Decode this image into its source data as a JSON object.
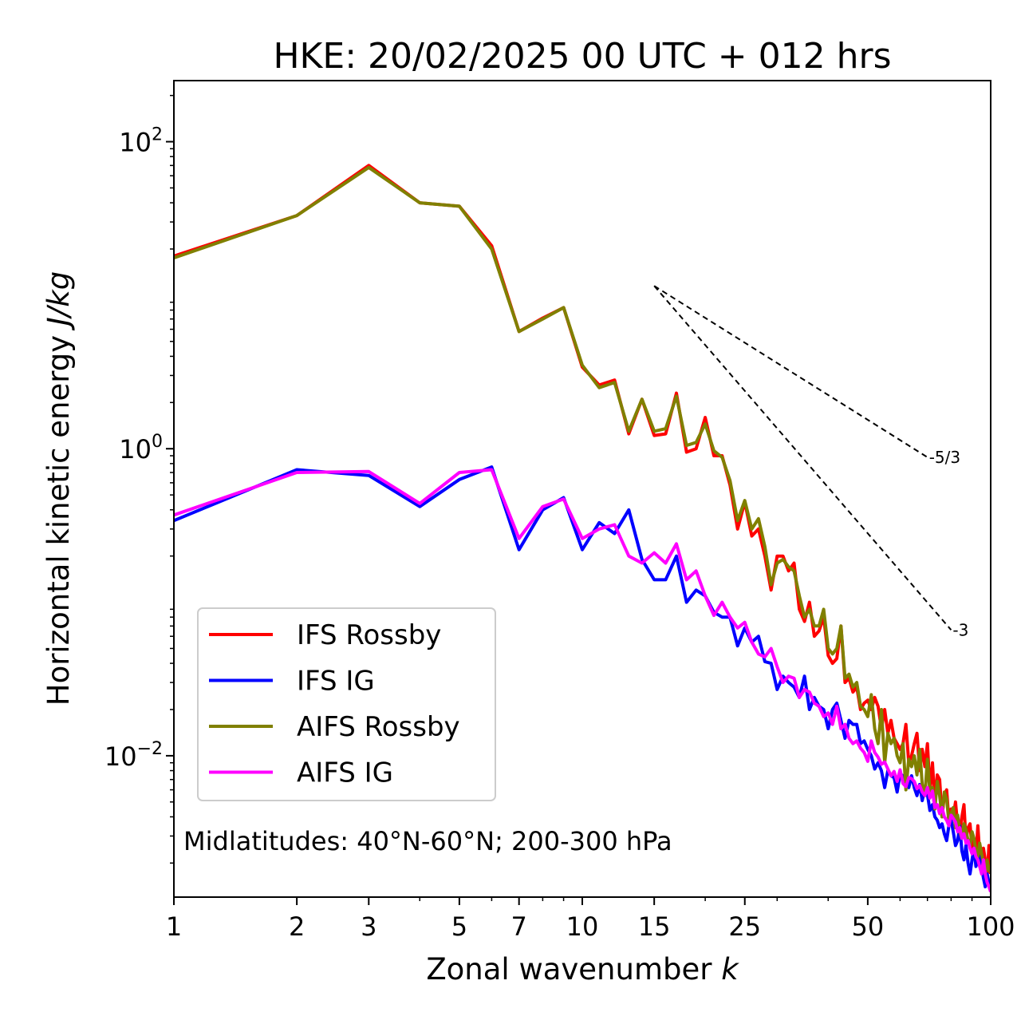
{
  "chart_data": {
    "type": "line",
    "title": "HKE: 20/02/2025 00 UTC + 012 hrs",
    "xlabel": "Zonal wavenumber",
    "xlabel_var": "k",
    "ylabel": "Horizontal kinetic energy",
    "ylabel_unit": "J/kg",
    "xscale": "log",
    "yscale": "log",
    "xlim": [
      1,
      100
    ],
    "ylim": [
      0.0012,
      250
    ],
    "x_ticks": [
      1,
      2,
      3,
      5,
      7,
      10,
      15,
      25,
      50,
      100
    ],
    "x_tick_labels": [
      "1",
      "2",
      "3",
      "5",
      "7",
      "10",
      "15",
      "25",
      "50",
      "100"
    ],
    "y_ticks": [
      0.01,
      1,
      100
    ],
    "y_tick_labels": [
      {
        "base": "10",
        "exp": "−2"
      },
      {
        "base": "10",
        "exp": "0"
      },
      {
        "base": "10",
        "exp": "2"
      }
    ],
    "legend_position": "lower-left",
    "annotation": "Midlatitudes: 40°N-60°N; 200-300 hPa",
    "reference_lines": [
      {
        "label": "-5/3",
        "x": [
          15,
          70
        ],
        "y": [
          11.5,
          0.88
        ]
      },
      {
        "label": "-3",
        "x": [
          15,
          80
        ],
        "y": [
          11.5,
          0.066
        ]
      }
    ],
    "x": [
      1,
      2,
      3,
      4,
      5,
      6,
      7,
      8,
      9,
      10,
      11,
      12,
      13,
      14,
      15,
      16,
      17,
      18,
      19,
      20,
      21,
      22,
      23,
      24,
      25,
      26,
      27,
      28,
      29,
      30,
      31,
      32,
      33,
      34,
      35,
      36,
      37,
      38,
      39,
      40,
      41,
      42,
      43,
      44,
      45,
      46,
      47,
      48,
      49,
      50,
      51,
      52,
      53,
      54,
      55,
      56,
      57,
      58,
      59,
      60,
      61,
      62,
      63,
      64,
      65,
      66,
      67,
      68,
      69,
      70,
      71,
      72,
      73,
      74,
      75,
      76,
      77,
      78,
      79,
      80,
      81,
      82,
      83,
      84,
      85,
      86,
      87,
      88,
      89,
      90,
      91,
      92,
      93,
      94,
      95,
      96,
      97,
      98,
      99,
      100
    ],
    "series": [
      {
        "name": "IFS Rossby",
        "color": "#ff0000",
        "values": [
          18,
          33,
          70,
          40,
          38,
          21,
          5.8,
          7.1,
          8.3,
          3.4,
          2.6,
          2.8,
          1.25,
          2.1,
          1.22,
          1.25,
          2.3,
          0.95,
          1.0,
          1.6,
          0.9,
          0.9,
          0.58,
          0.3,
          0.45,
          0.27,
          0.3,
          0.2,
          0.12,
          0.2,
          0.2,
          0.16,
          0.18,
          0.09,
          0.075,
          0.1,
          0.06,
          0.065,
          0.08,
          0.045,
          0.04,
          0.043,
          0.07,
          0.03,
          0.032,
          0.026,
          0.028,
          0.02,
          0.022,
          0.023,
          0.02,
          0.024,
          0.021,
          0.015,
          0.02,
          0.014,
          0.017,
          0.013,
          0.012,
          0.011,
          0.012,
          0.016,
          0.009,
          0.01,
          0.012,
          0.014,
          0.008,
          0.011,
          0.0085,
          0.012,
          0.006,
          0.009,
          0.005,
          0.0075,
          0.007,
          0.004,
          0.0055,
          0.006,
          0.0038,
          0.0045,
          0.004,
          0.005,
          0.0035,
          0.0032,
          0.004,
          0.0048,
          0.0028,
          0.0034,
          0.0036,
          0.0025,
          0.0028,
          0.0022,
          0.0035,
          0.0023,
          0.0018,
          0.0025,
          0.0021,
          0.0016,
          0.0026,
          0.0017
        ]
      },
      {
        "name": "IFS IG",
        "color": "#0000ff",
        "values": [
          0.34,
          0.73,
          0.67,
          0.42,
          0.63,
          0.76,
          0.22,
          0.4,
          0.48,
          0.22,
          0.33,
          0.28,
          0.4,
          0.19,
          0.14,
          0.14,
          0.2,
          0.1,
          0.12,
          0.11,
          0.086,
          0.08,
          0.08,
          0.052,
          0.068,
          0.055,
          0.06,
          0.041,
          0.04,
          0.027,
          0.033,
          0.03,
          0.028,
          0.024,
          0.033,
          0.02,
          0.024,
          0.021,
          0.02,
          0.015,
          0.02,
          0.022,
          0.017,
          0.013,
          0.017,
          0.016,
          0.016,
          0.012,
          0.0125,
          0.011,
          0.01,
          0.0082,
          0.009,
          0.008,
          0.0062,
          0.008,
          0.0074,
          0.0072,
          0.0058,
          0.0076,
          0.0074,
          0.0068,
          0.0062,
          0.0074,
          0.0062,
          0.0055,
          0.0065,
          0.0051,
          0.0062,
          0.0056,
          0.0044,
          0.0048,
          0.004,
          0.0038,
          0.0034,
          0.0036,
          0.0031,
          0.0028,
          0.0035,
          0.0038,
          0.0032,
          0.0026,
          0.0028,
          0.0035,
          0.0024,
          0.0021,
          0.0026,
          0.002,
          0.0017,
          0.0021,
          0.0025,
          0.0019,
          0.0021,
          0.0022,
          0.0019,
          0.0016,
          0.0014,
          0.0017,
          0.0015,
          0.0013
        ]
      },
      {
        "name": "AIFS Rossby",
        "color": "#808000",
        "values": [
          17.5,
          33,
          68,
          40,
          38,
          20,
          5.8,
          7.0,
          8.3,
          3.5,
          2.5,
          2.7,
          1.3,
          2.1,
          1.3,
          1.35,
          2.2,
          1.05,
          1.1,
          1.45,
          0.97,
          0.88,
          0.62,
          0.34,
          0.46,
          0.3,
          0.35,
          0.23,
          0.13,
          0.18,
          0.19,
          0.17,
          0.16,
          0.11,
          0.08,
          0.09,
          0.07,
          0.07,
          0.09,
          0.05,
          0.046,
          0.05,
          0.07,
          0.032,
          0.034,
          0.028,
          0.03,
          0.021,
          0.02,
          0.018,
          0.025,
          0.015,
          0.012,
          0.02,
          0.009,
          0.014,
          0.012,
          0.013,
          0.01,
          0.009,
          0.012,
          0.006,
          0.0095,
          0.0085,
          0.01,
          0.0075,
          0.011,
          0.0065,
          0.0055,
          0.0095,
          0.0058,
          0.0062,
          0.0045,
          0.0068,
          0.0055,
          0.004,
          0.0058,
          0.0052,
          0.0037,
          0.0042,
          0.0046,
          0.0034,
          0.0041,
          0.0032,
          0.0029,
          0.0036,
          0.0033,
          0.0028,
          0.0026,
          0.0032,
          0.0029,
          0.0024,
          0.0022,
          0.0027,
          0.0023,
          0.002,
          0.0017,
          0.0021,
          0.0018,
          0.00175
        ]
      },
      {
        "name": "AIFS IG",
        "color": "#ff00ff",
        "values": [
          0.37,
          0.7,
          0.71,
          0.44,
          0.7,
          0.73,
          0.26,
          0.42,
          0.47,
          0.26,
          0.3,
          0.32,
          0.2,
          0.18,
          0.21,
          0.18,
          0.24,
          0.14,
          0.16,
          0.11,
          0.082,
          0.1,
          0.08,
          0.068,
          0.074,
          0.055,
          0.046,
          0.044,
          0.05,
          0.038,
          0.03,
          0.033,
          0.032,
          0.024,
          0.027,
          0.026,
          0.022,
          0.021,
          0.018,
          0.019,
          0.016,
          0.021,
          0.015,
          0.016,
          0.013,
          0.012,
          0.0125,
          0.0112,
          0.0105,
          0.0092,
          0.0125,
          0.0105,
          0.0098,
          0.0088,
          0.0091,
          0.0082,
          0.0074,
          0.0079,
          0.0068,
          0.0081,
          0.0066,
          0.0063,
          0.0072,
          0.0071,
          0.0068,
          0.0061,
          0.0064,
          0.0058,
          0.0055,
          0.0062,
          0.0053,
          0.0059,
          0.0046,
          0.0048,
          0.0042,
          0.0046,
          0.004,
          0.0038,
          0.0035,
          0.0041,
          0.0039,
          0.0037,
          0.0032,
          0.0034,
          0.0029,
          0.0031,
          0.0027,
          0.0028,
          0.0025,
          0.0023,
          0.0025,
          0.0022,
          0.0021,
          0.0019,
          0.0017,
          0.0021,
          0.0017,
          0.0015,
          0.0014,
          0.0013
        ]
      }
    ]
  }
}
